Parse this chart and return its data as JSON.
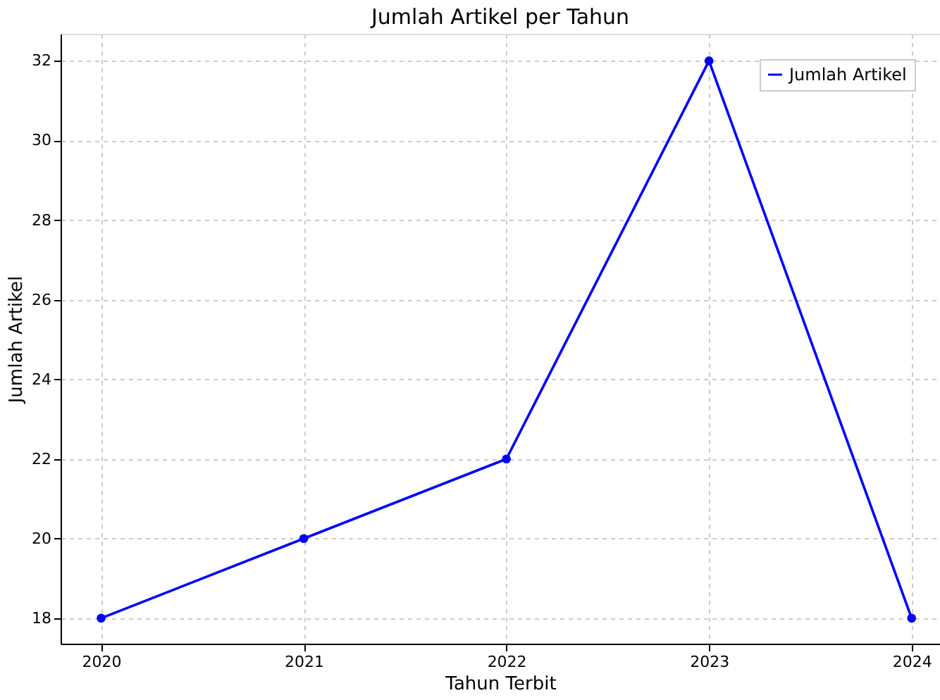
{
  "chart_data": {
    "type": "line",
    "title": "Jumlah Artikel per Tahun",
    "xlabel": "Tahun Terbit",
    "ylabel": "Jumlah Artikel",
    "x": [
      2020,
      2021,
      2022,
      2023,
      2024
    ],
    "series": [
      {
        "name": "Jumlah Artikel",
        "color": "#0000ff",
        "values": [
          18,
          20,
          22,
          32,
          18
        ]
      }
    ],
    "xlim": [
      2019.8,
      2024.14
    ],
    "xticks": [
      2020,
      2021,
      2022,
      2023,
      2024
    ],
    "ylim": [
      17.36,
      32.68
    ],
    "yticks": [
      18,
      20,
      22,
      24,
      26,
      28,
      30,
      32
    ],
    "grid": true,
    "legend": "top right",
    "marker": "circle",
    "line_style": "solid"
  }
}
